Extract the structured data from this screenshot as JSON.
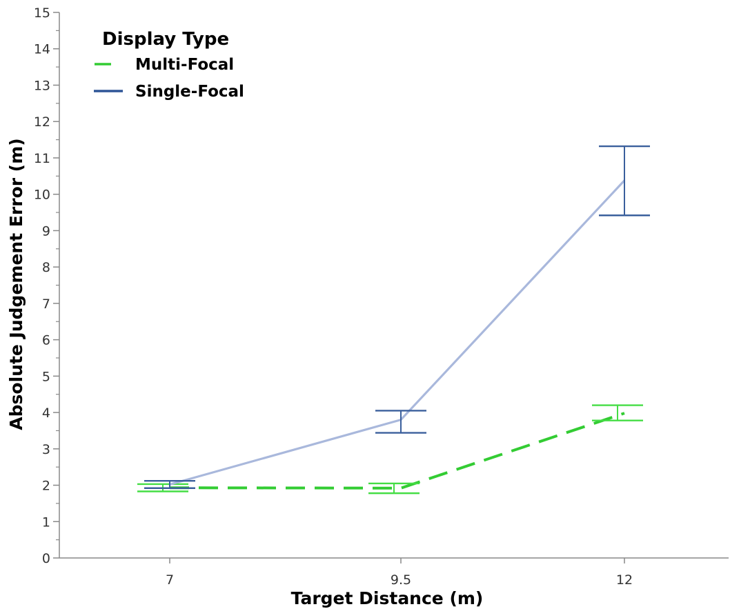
{
  "chart_data": {
    "type": "line",
    "title": "",
    "xlabel": "Target Distance (m)",
    "ylabel": "Absolute Judgement Error (m)",
    "x_categories": [
      "7",
      "9.5",
      "12"
    ],
    "ylim": [
      0,
      15
    ],
    "y_ticks": [
      "0",
      "1",
      "2",
      "3",
      "4",
      "5",
      "6",
      "7",
      "8",
      "9",
      "10",
      "11",
      "12",
      "13",
      "14",
      "15"
    ],
    "grid": false,
    "legend": {
      "title": "Display Type",
      "placement": "top-left"
    },
    "series": [
      {
        "name": "Multi-Focal",
        "line_color": "#33cc33",
        "errorbar_color": "#44dd44",
        "dashed": true,
        "values": [
          1.93,
          1.92,
          3.98
        ],
        "error_low": [
          1.83,
          1.78,
          3.78
        ],
        "error_high": [
          2.03,
          2.05,
          4.2
        ]
      },
      {
        "name": "Single-Focal",
        "line_color": "#a9b8dc",
        "errorbar_color": "#3a5f9c",
        "legend_color": "#2e5597",
        "dashed": false,
        "values": [
          2.02,
          3.8,
          10.38
        ],
        "error_low": [
          1.92,
          3.44,
          9.42
        ],
        "error_high": [
          2.12,
          4.05,
          11.32
        ]
      }
    ]
  }
}
